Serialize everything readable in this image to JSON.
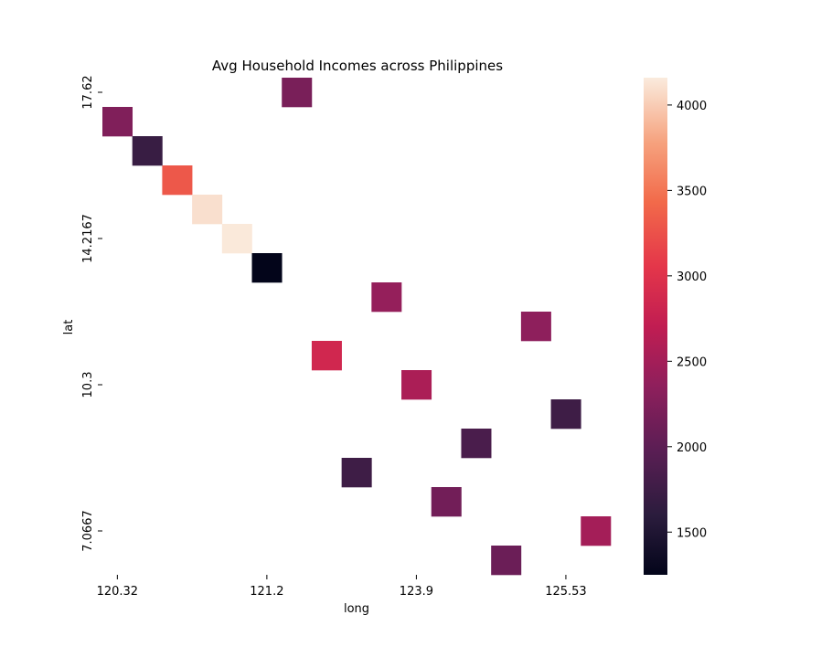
{
  "chart_data": {
    "type": "heatmap",
    "title": "Avg Household Incomes across Philippines",
    "xlabel": "long",
    "ylabel": "lat",
    "x_tick_labels": [
      "120.32",
      "121.2",
      "123.9",
      "125.53"
    ],
    "y_tick_labels": [
      "17.62",
      "14.2167",
      "10.3",
      "7.0667"
    ],
    "grid_columns": 17,
    "grid_rows": 17,
    "cells": [
      {
        "col": 6,
        "row": 0,
        "value": 2200
      },
      {
        "col": 0,
        "row": 1,
        "value": 2250
      },
      {
        "col": 1,
        "row": 2,
        "value": 1700
      },
      {
        "col": 2,
        "row": 3,
        "value": 3300
      },
      {
        "col": 3,
        "row": 4,
        "value": 4100
      },
      {
        "col": 4,
        "row": 5,
        "value": 4150
      },
      {
        "col": 5,
        "row": 6,
        "value": 1250
      },
      {
        "col": 9,
        "row": 7,
        "value": 2400
      },
      {
        "col": 14,
        "row": 8,
        "value": 2350
      },
      {
        "col": 7,
        "row": 9,
        "value": 2850
      },
      {
        "col": 10,
        "row": 10,
        "value": 2550
      },
      {
        "col": 15,
        "row": 11,
        "value": 1750
      },
      {
        "col": 12,
        "row": 12,
        "value": 1850
      },
      {
        "col": 8,
        "row": 13,
        "value": 1750
      },
      {
        "col": 11,
        "row": 14,
        "value": 2150
      },
      {
        "col": 16,
        "row": 15,
        "value": 2500
      },
      {
        "col": 13,
        "row": 16,
        "value": 2100
      }
    ],
    "colorbar": {
      "min": 1250,
      "max": 4160,
      "ticks": [
        1500,
        2000,
        2500,
        3000,
        3500,
        4000
      ],
      "tick_labels": [
        "1500",
        "2000",
        "2500",
        "3000",
        "3500",
        "4000"
      ],
      "colormap": "rocket"
    }
  }
}
